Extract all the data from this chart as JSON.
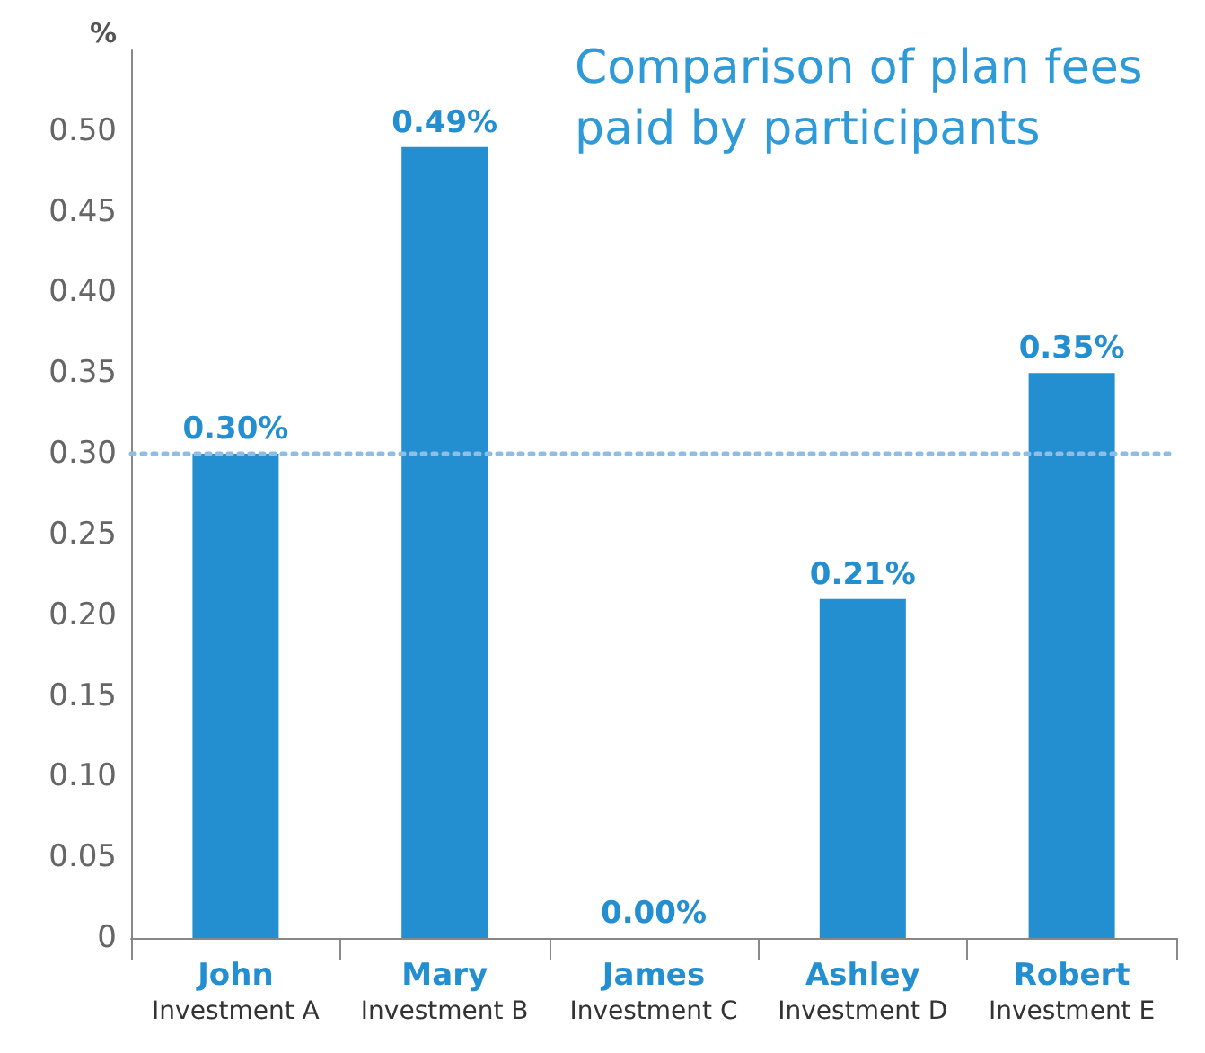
{
  "chart_data": {
    "type": "bar",
    "title": "Comparison of plan fees paid by participants",
    "ylabel": "%",
    "categories": [
      "John\nInvestment A",
      "Mary\nInvestment B",
      "James\nInvestment C",
      "Ashley\nInvestment D",
      "Robert\nInvestment E"
    ],
    "values": [
      0.3,
      0.49,
      0.0,
      0.21,
      0.35
    ],
    "value_labels": [
      "0.30%",
      "0.49%",
      "0.00%",
      "0.21%",
      "0.35%"
    ],
    "color": "#238fd0",
    "ylim": [
      0,
      0.55
    ],
    "yticks": [
      {
        "value": 0,
        "label": "0"
      },
      {
        "value": 0.05,
        "label": "0.05"
      },
      {
        "value": 0.1,
        "label": "0.10"
      },
      {
        "value": 0.15,
        "label": "0.15"
      },
      {
        "value": 0.2,
        "label": "0.20"
      },
      {
        "value": 0.25,
        "label": "0.25"
      },
      {
        "value": 0.3,
        "label": "0.30"
      },
      {
        "value": 0.35,
        "label": "0.35"
      },
      {
        "value": 0.4,
        "label": "0.40"
      },
      {
        "value": 0.45,
        "label": "0.45"
      },
      {
        "value": 0.5,
        "label": "0.50"
      }
    ],
    "ref_lines": [
      {
        "axis": "y",
        "value": 0.3,
        "color": "#8fbde3",
        "line_style": "dotted"
      }
    ],
    "grid": false
  }
}
